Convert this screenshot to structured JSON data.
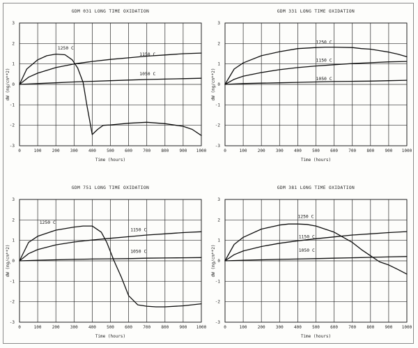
{
  "chart_data": [
    {
      "type": "line",
      "title": "GDM 031 LONG TIME OXIDATION",
      "xlabel": "Time (hours)",
      "ylabel": "dW (mg/cm**2)",
      "xlim": [
        0,
        1000
      ],
      "ylim": [
        -3,
        3
      ],
      "xticks": [
        0,
        100,
        200,
        300,
        400,
        500,
        600,
        700,
        800,
        900,
        1000
      ],
      "yticks": [
        3,
        2,
        1,
        0,
        -1,
        -2,
        -3
      ],
      "grid": true,
      "series": [
        {
          "name": "1250 C",
          "x": [
            0,
            40,
            100,
            150,
            200,
            250,
            290,
            320,
            350,
            370,
            400,
            430,
            460,
            500,
            600,
            700,
            800,
            900,
            950,
            1000
          ],
          "y": [
            0,
            0.75,
            1.2,
            1.4,
            1.48,
            1.45,
            1.2,
            0.8,
            0.1,
            -1.0,
            -2.45,
            -2.2,
            -2.0,
            -1.98,
            -1.9,
            -1.85,
            -1.92,
            -2.05,
            -2.2,
            -2.5
          ]
        },
        {
          "name": "1150 C",
          "x": [
            0,
            50,
            100,
            200,
            300,
            400,
            500,
            600,
            700,
            800,
            900,
            1000
          ],
          "y": [
            0,
            0.35,
            0.55,
            0.82,
            1.0,
            1.12,
            1.22,
            1.3,
            1.38,
            1.44,
            1.5,
            1.53
          ]
        },
        {
          "name": "1050 C",
          "x": [
            0,
            100,
            200,
            300,
            400,
            500,
            600,
            700,
            800,
            900,
            1000
          ],
          "y": [
            0,
            0.04,
            0.08,
            0.12,
            0.15,
            0.18,
            0.21,
            0.24,
            0.26,
            0.28,
            0.3
          ]
        }
      ],
      "curve_labels": [
        {
          "text": "1250 C",
          "x": 210,
          "y": 1.7
        },
        {
          "text": "1150 C",
          "x": 660,
          "y": 1.4
        },
        {
          "text": "1050 C",
          "x": 660,
          "y": 0.45
        }
      ]
    },
    {
      "type": "line",
      "title": "GDM 331 LONG TIME OXIDATION",
      "xlabel": "Time (hours)",
      "ylabel": "dW (mg/cm**2)",
      "xlim": [
        0,
        1000
      ],
      "ylim": [
        -3,
        3
      ],
      "xticks": [
        0,
        100,
        200,
        300,
        400,
        500,
        600,
        700,
        800,
        900,
        1000
      ],
      "yticks": [
        3,
        2,
        1,
        0,
        -1,
        -2,
        -3
      ],
      "grid": true,
      "series": [
        {
          "name": "1250 C",
          "x": [
            0,
            50,
            100,
            200,
            300,
            400,
            500,
            550,
            600,
            700,
            750,
            800,
            850,
            900,
            950,
            1000
          ],
          "y": [
            0,
            0.75,
            1.05,
            1.4,
            1.6,
            1.75,
            1.8,
            1.82,
            1.82,
            1.8,
            1.75,
            1.72,
            1.65,
            1.58,
            1.48,
            1.35
          ]
        },
        {
          "name": "1150 C",
          "x": [
            0,
            50,
            100,
            200,
            300,
            400,
            500,
            600,
            700,
            800,
            900,
            1000
          ],
          "y": [
            0,
            0.25,
            0.4,
            0.58,
            0.72,
            0.82,
            0.9,
            0.96,
            1.02,
            1.06,
            1.1,
            1.12
          ]
        },
        {
          "name": "1050 C",
          "x": [
            0,
            100,
            200,
            300,
            400,
            500,
            600,
            700,
            800,
            900,
            1000
          ],
          "y": [
            0,
            0.04,
            0.06,
            0.08,
            0.1,
            0.12,
            0.14,
            0.15,
            0.16,
            0.18,
            0.2
          ]
        }
      ],
      "curve_labels": [
        {
          "text": "1250 C",
          "x": 500,
          "y": 2.0
        },
        {
          "text": "1150 C",
          "x": 500,
          "y": 1.1
        },
        {
          "text": "1050 C",
          "x": 500,
          "y": 0.2
        }
      ]
    },
    {
      "type": "line",
      "title": "GDM 751 LONG TIME OXIDATION",
      "xlabel": "Time (hours)",
      "ylabel": "dW (mg/cm**2)",
      "xlim": [
        0,
        1000
      ],
      "ylim": [
        -3,
        3
      ],
      "xticks": [
        0,
        100,
        200,
        300,
        400,
        500,
        600,
        700,
        800,
        900,
        1000
      ],
      "yticks": [
        3,
        2,
        1,
        0,
        -1,
        -2,
        -3
      ],
      "grid": true,
      "series": [
        {
          "name": "1250 C",
          "x": [
            0,
            50,
            100,
            200,
            300,
            350,
            400,
            450,
            480,
            520,
            560,
            600,
            650,
            700,
            750,
            800,
            900,
            1000
          ],
          "y": [
            0,
            0.9,
            1.2,
            1.5,
            1.65,
            1.7,
            1.7,
            1.4,
            0.9,
            0.0,
            -0.8,
            -1.7,
            -2.15,
            -2.22,
            -2.25,
            -2.25,
            -2.2,
            -2.1
          ]
        },
        {
          "name": "1150 C",
          "x": [
            0,
            50,
            100,
            200,
            300,
            400,
            500,
            600,
            700,
            800,
            900,
            1000
          ],
          "y": [
            0,
            0.35,
            0.55,
            0.78,
            0.92,
            1.02,
            1.1,
            1.18,
            1.26,
            1.32,
            1.38,
            1.42
          ]
        },
        {
          "name": "1050 C",
          "x": [
            0,
            100,
            200,
            300,
            400,
            500,
            600,
            700,
            800,
            900,
            1000
          ],
          "y": [
            0,
            0.03,
            0.05,
            0.07,
            0.09,
            0.1,
            0.11,
            0.13,
            0.14,
            0.15,
            0.16
          ]
        }
      ],
      "curve_labels": [
        {
          "text": "1250 C",
          "x": 110,
          "y": 1.8
        },
        {
          "text": "1150 C",
          "x": 610,
          "y": 1.45
        },
        {
          "text": "1050 C",
          "x": 610,
          "y": 0.4
        }
      ]
    },
    {
      "type": "line",
      "title": "GDM 381 LONG TIME OXIDATION",
      "xlabel": "Time (hours)",
      "ylabel": "dW (mg/cm**2)",
      "xlim": [
        0,
        1000
      ],
      "ylim": [
        -3,
        3
      ],
      "xticks": [
        0,
        100,
        200,
        300,
        400,
        500,
        600,
        700,
        800,
        900,
        1000
      ],
      "yticks": [
        3,
        2,
        1,
        0,
        -1,
        -2,
        -3
      ],
      "grid": true,
      "series": [
        {
          "name": "1250 C",
          "x": [
            0,
            50,
            100,
            200,
            300,
            350,
            400,
            450,
            500,
            600,
            700,
            750,
            800,
            850,
            900,
            950,
            1000
          ],
          "y": [
            0,
            0.8,
            1.15,
            1.55,
            1.75,
            1.8,
            1.8,
            1.78,
            1.7,
            1.4,
            0.9,
            0.55,
            0.25,
            -0.05,
            -0.2,
            -0.42,
            -0.65
          ]
        },
        {
          "name": "1150 C",
          "x": [
            0,
            50,
            100,
            200,
            300,
            400,
            500,
            600,
            700,
            800,
            900,
            1000
          ],
          "y": [
            0,
            0.3,
            0.48,
            0.7,
            0.86,
            0.98,
            1.08,
            1.17,
            1.26,
            1.32,
            1.38,
            1.43
          ]
        },
        {
          "name": "1050 C",
          "x": [
            0,
            100,
            200,
            300,
            400,
            500,
            600,
            700,
            800,
            900,
            1000
          ],
          "y": [
            0,
            0.03,
            0.05,
            0.07,
            0.09,
            0.11,
            0.13,
            0.15,
            0.17,
            0.19,
            0.21
          ]
        }
      ],
      "curve_labels": [
        {
          "text": "1250 C",
          "x": 400,
          "y": 2.1
        },
        {
          "text": "1150 C",
          "x": 405,
          "y": 1.1
        },
        {
          "text": "1050 C",
          "x": 405,
          "y": 0.45
        }
      ]
    }
  ]
}
